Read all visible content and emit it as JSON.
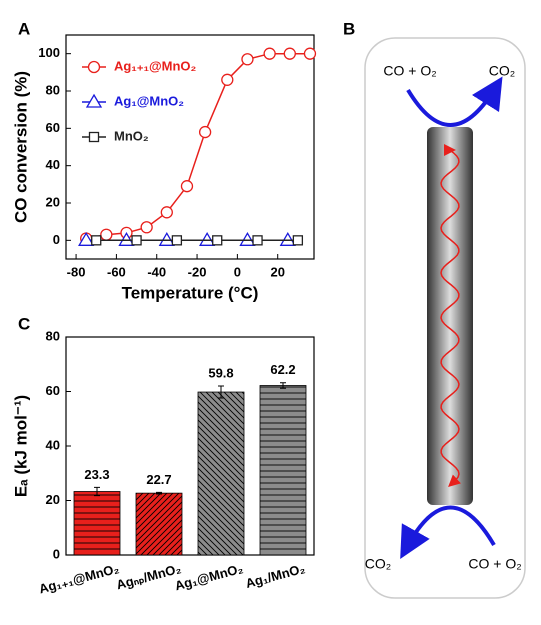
{
  "chart_data": [
    {
      "type": "line",
      "panel_label": "A",
      "x_label": "Temperature (°C)",
      "y_label": "CO conversion (%)",
      "xlim": [
        -85,
        38
      ],
      "ylim": [
        -10,
        110
      ],
      "xticks": [
        -80,
        -60,
        -40,
        -20,
        0,
        20
      ],
      "yticks": [
        0,
        20,
        40,
        60,
        80,
        100
      ],
      "legend": "upper left",
      "series": [
        {
          "name": "Ag₁₊₁@MnO₂",
          "color": "#e8201c",
          "marker": "circle",
          "x": [
            -75,
            -65,
            -55,
            -45,
            -35,
            -25,
            -16,
            -5,
            5,
            16,
            26,
            36
          ],
          "values": [
            1,
            3,
            4,
            7,
            15,
            29,
            58,
            86,
            97,
            100,
            100,
            100
          ]
        },
        {
          "name": "Ag₁@MnO₂",
          "color": "#1a1adc",
          "marker": "triangle",
          "x": [
            -75,
            -55,
            -35,
            -15,
            5,
            25
          ],
          "values": [
            0,
            0,
            0,
            0,
            0,
            0
          ]
        },
        {
          "name": "MnO₂",
          "color": "#222222",
          "marker": "square",
          "x": [
            -70,
            -50,
            -30,
            -10,
            10,
            30
          ],
          "values": [
            0,
            0,
            0,
            0,
            0,
            0
          ]
        }
      ]
    },
    {
      "type": "bar",
      "panel_label": "C",
      "y_label": "Eₐ (kJ mol⁻¹)",
      "categories": [
        "Ag₁₊₁@MnO₂",
        "Agₙₚ/MnO₂",
        "Ag₁@MnO₂",
        "Ag₁/MnO₂"
      ],
      "values": [
        23.3,
        22.7,
        59.8,
        62.2
      ],
      "errors": [
        1.5,
        0.3,
        2.2,
        1.0
      ],
      "colors": [
        "#e8201c",
        "#e8201c",
        "#8c8c8c",
        "#8c8c8c"
      ],
      "hatches": [
        "horizontal",
        "diagonal",
        "antidiagonal",
        "horizontal"
      ],
      "ylim": [
        0,
        80
      ],
      "yticks": [
        0,
        20,
        40,
        60,
        80
      ]
    }
  ],
  "diagram": {
    "panel_label": "B",
    "top_left": "CO + O₂",
    "top_right": "CO₂",
    "bottom_left": "CO₂",
    "bottom_right": "CO + O₂"
  }
}
